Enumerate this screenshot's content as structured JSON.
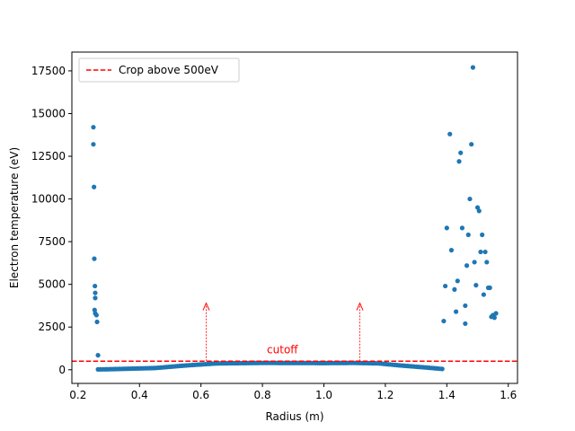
{
  "chart_data": {
    "type": "scatter",
    "xlabel": "Radius (m)",
    "ylabel": "Electron temperature (eV)",
    "xlim": [
      0.18,
      1.63
    ],
    "ylim": [
      -800,
      18600
    ],
    "xticks": [
      "0.2",
      "0.4",
      "0.6",
      "0.8",
      "1.0",
      "1.2",
      "1.4",
      "1.6"
    ],
    "yticks": [
      "0",
      "2500",
      "5000",
      "7500",
      "10000",
      "12500",
      "15000",
      "17500"
    ],
    "grid": false,
    "legend": {
      "placement": "upper-left",
      "entries": [
        "Crop above 500eV"
      ]
    },
    "series": [
      {
        "marker_color": "#1f77b4",
        "points": [
          [
            0.25,
            14200
          ],
          [
            0.25,
            13200
          ],
          [
            0.252,
            10700
          ],
          [
            0.253,
            6500
          ],
          [
            0.255,
            4900
          ],
          [
            0.256,
            4500
          ],
          [
            0.256,
            4200
          ],
          [
            0.254,
            3500
          ],
          [
            0.256,
            3300
          ],
          [
            0.26,
            3200
          ],
          [
            0.262,
            2800
          ],
          [
            0.265,
            850
          ],
          [
            1.39,
            2850
          ],
          [
            1.395,
            4900
          ],
          [
            1.4,
            8300
          ],
          [
            1.41,
            13800
          ],
          [
            1.415,
            7000
          ],
          [
            1.425,
            4700
          ],
          [
            1.43,
            3400
          ],
          [
            1.435,
            5200
          ],
          [
            1.44,
            12200
          ],
          [
            1.445,
            12700
          ],
          [
            1.45,
            8300
          ],
          [
            1.46,
            3750
          ],
          [
            1.46,
            2700
          ],
          [
            1.465,
            6100
          ],
          [
            1.47,
            7900
          ],
          [
            1.475,
            10000
          ],
          [
            1.48,
            13200
          ],
          [
            1.485,
            17700
          ],
          [
            1.49,
            6300
          ],
          [
            1.495,
            4950
          ],
          [
            1.5,
            9500
          ],
          [
            1.505,
            9300
          ],
          [
            1.51,
            6900
          ],
          [
            1.515,
            7900
          ],
          [
            1.52,
            4400
          ],
          [
            1.525,
            6900
          ],
          [
            1.53,
            6300
          ],
          [
            1.535,
            4800
          ],
          [
            1.54,
            4800
          ],
          [
            1.545,
            3100
          ],
          [
            1.55,
            3200
          ],
          [
            1.555,
            3050
          ],
          [
            1.56,
            3300
          ]
        ],
        "band": {
          "x_start": 0.265,
          "x_end": 1.39,
          "step": 0.007,
          "profile": [
            [
              0.265,
              20
            ],
            [
              0.3,
              30
            ],
            [
              0.45,
              100
            ],
            [
              0.55,
              250
            ],
            [
              0.65,
              370
            ],
            [
              0.8,
              400
            ],
            [
              1.0,
              390
            ],
            [
              1.1,
              400
            ],
            [
              1.18,
              370
            ],
            [
              1.25,
              250
            ],
            [
              1.32,
              150
            ],
            [
              1.39,
              40
            ]
          ]
        }
      }
    ],
    "cutoff_line": {
      "y": 500,
      "color": "#ff0000",
      "label": "Crop above 500eV"
    },
    "annotations": [
      {
        "text": "cutoff",
        "x": 0.865,
        "y": 950,
        "color": "#ff0000"
      }
    ],
    "arrows": [
      {
        "x": 0.617,
        "y_from": 500,
        "y_to": 3900,
        "color": "#ff0000"
      },
      {
        "x": 1.117,
        "y_from": 500,
        "y_to": 3900,
        "color": "#ff0000"
      }
    ]
  }
}
